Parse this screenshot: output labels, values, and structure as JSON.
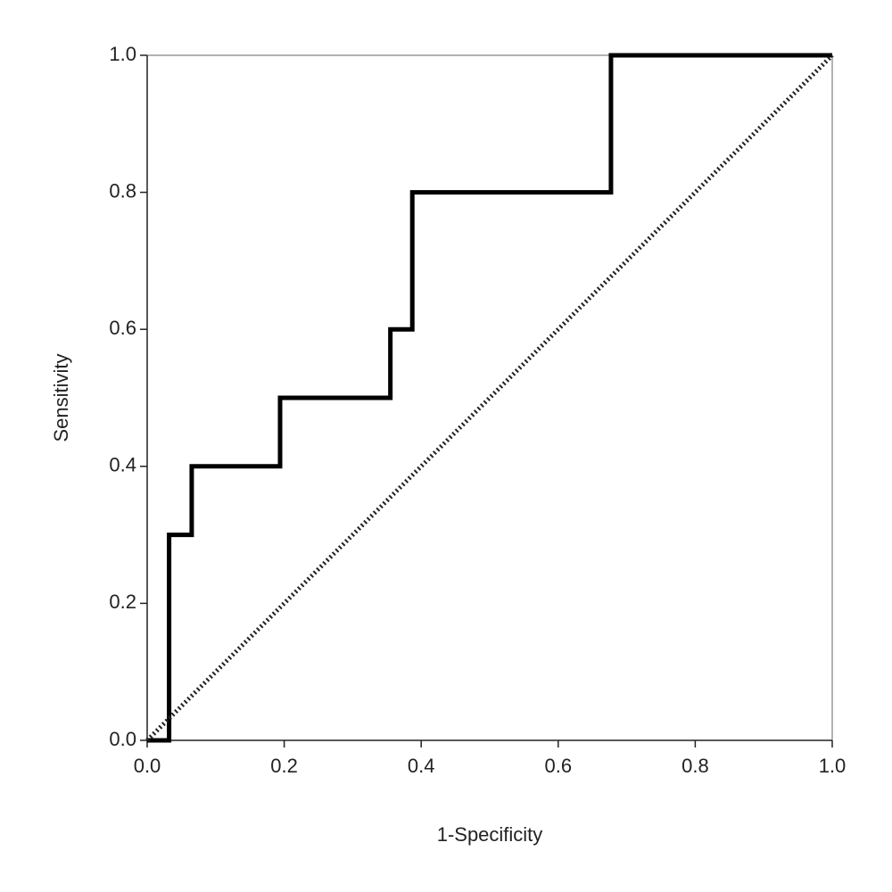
{
  "chart_data": {
    "type": "line",
    "xlabel": "1-Specificity",
    "ylabel": "Sensitivity",
    "xlim": [
      0,
      1
    ],
    "ylim": [
      0,
      1
    ],
    "xticks": [
      {
        "value": 0,
        "label": "0.0"
      },
      {
        "value": 0.2,
        "label": "0.2"
      },
      {
        "value": 0.4,
        "label": "0.4"
      },
      {
        "value": 0.6,
        "label": "0.6"
      },
      {
        "value": 0.8,
        "label": "0.8"
      },
      {
        "value": 1,
        "label": "1.0"
      }
    ],
    "yticks": [
      {
        "value": 0,
        "label": "0.0"
      },
      {
        "value": 0.2,
        "label": "0.2"
      },
      {
        "value": 0.4,
        "label": "0.4"
      },
      {
        "value": 0.6,
        "label": "0.6"
      },
      {
        "value": 0.8,
        "label": "0.8"
      },
      {
        "value": 1,
        "label": "1.0"
      }
    ],
    "grid": false,
    "series": [
      {
        "color": "#000000",
        "style": "solid",
        "x": [
          0,
          0.032,
          0.032,
          0.065,
          0.065,
          0.194,
          0.194,
          0.355,
          0.355,
          0.387,
          0.387,
          0.677,
          0.677,
          1
        ],
        "values": [
          0,
          0,
          0.3,
          0.3,
          0.4,
          0.4,
          0.5,
          0.5,
          0.6,
          0.6,
          0.8,
          0.8,
          1,
          1
        ]
      },
      {
        "color": "#222222",
        "style": "dotted",
        "x": [
          0,
          1
        ],
        "values": [
          0,
          1
        ]
      }
    ]
  }
}
